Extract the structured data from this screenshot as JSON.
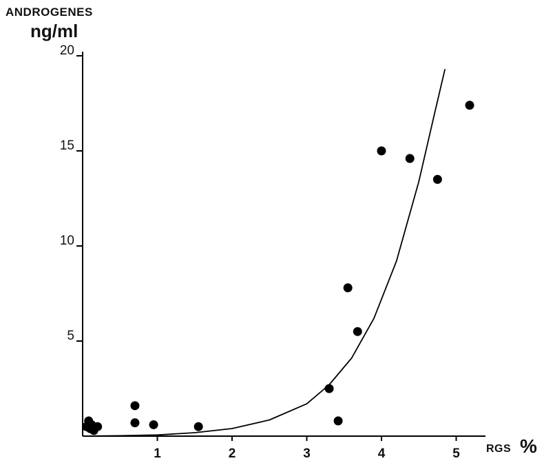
{
  "chart_data": {
    "type": "scatter",
    "ylabel_line1": "ANDROGENES",
    "ylabel_line2": "ng/ml",
    "xlabel_text": "RGS",
    "xlabel_unit": "%",
    "xlim": [
      0,
      5.3
    ],
    "ylim": [
      0,
      20
    ],
    "xticks": [
      1,
      2,
      3,
      4,
      5
    ],
    "yticks": [
      5,
      10,
      15,
      20
    ],
    "grid": false,
    "points": [
      {
        "x": 0.05,
        "y": 0.5
      },
      {
        "x": 0.08,
        "y": 0.8
      },
      {
        "x": 0.1,
        "y": 0.4
      },
      {
        "x": 0.12,
        "y": 0.6
      },
      {
        "x": 0.15,
        "y": 0.3
      },
      {
        "x": 0.2,
        "y": 0.5
      },
      {
        "x": 0.7,
        "y": 1.6
      },
      {
        "x": 0.7,
        "y": 0.7
      },
      {
        "x": 0.95,
        "y": 0.6
      },
      {
        "x": 1.55,
        "y": 0.5
      },
      {
        "x": 3.3,
        "y": 2.5
      },
      {
        "x": 3.42,
        "y": 0.8
      },
      {
        "x": 3.55,
        "y": 7.8
      },
      {
        "x": 3.68,
        "y": 5.5
      },
      {
        "x": 4.0,
        "y": 15.0
      },
      {
        "x": 4.38,
        "y": 14.6
      },
      {
        "x": 4.75,
        "y": 13.5
      },
      {
        "x": 5.18,
        "y": 17.4
      }
    ],
    "curve": {
      "x": [
        0,
        0.5,
        1.0,
        1.5,
        2.0,
        2.5,
        3.0,
        3.3,
        3.6,
        3.9,
        4.2,
        4.5,
        4.7,
        4.85
      ],
      "y": [
        0,
        0.02,
        0.06,
        0.18,
        0.4,
        0.85,
        1.7,
        2.7,
        4.1,
        6.2,
        9.2,
        13.4,
        16.8,
        19.3
      ]
    }
  }
}
